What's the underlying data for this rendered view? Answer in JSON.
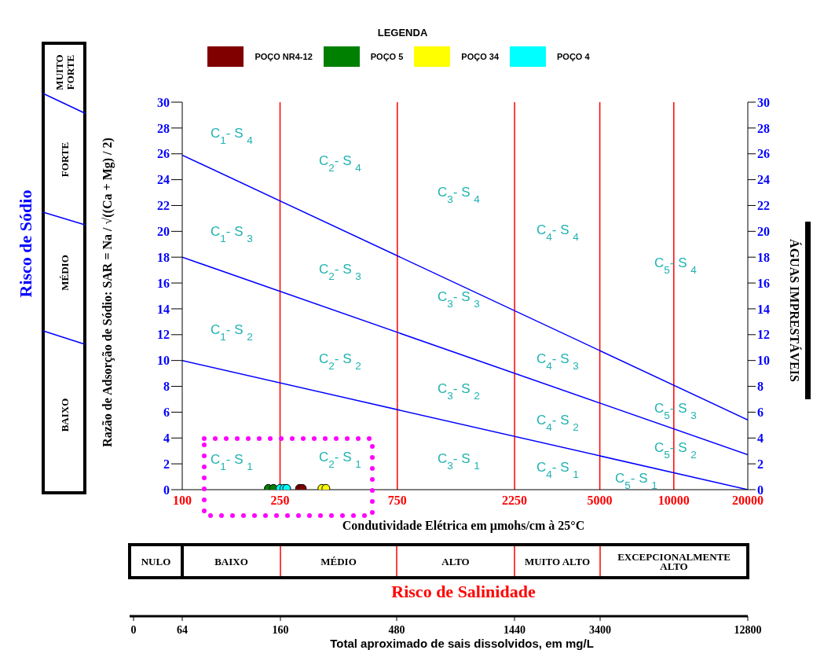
{
  "chart_data": {
    "type": "scatter",
    "xlabel": "Condutividade Elétrica em µmohs/cm à 25°C",
    "ylabel": "Razão de Adsorção de Sódio: SAR = Na / √((Ca + Mg) / 2)",
    "legend_title": "LEGENDA",
    "xlim": [
      100,
      20000
    ],
    "xticks": [
      100,
      250,
      750,
      2250,
      5000,
      10000,
      20000
    ],
    "ylim": [
      0,
      30
    ],
    "yticks": [
      0,
      2,
      4,
      6,
      8,
      10,
      12,
      14,
      16,
      18,
      20,
      22,
      24,
      26,
      28,
      30
    ],
    "y2lim": [
      0,
      30
    ],
    "y2ticks": [
      0,
      2,
      4,
      6,
      8,
      10,
      12,
      14,
      16,
      18,
      20,
      22,
      24,
      26,
      28,
      30
    ],
    "log": "x",
    "grid": false,
    "legend": "top",
    "marker": "circle",
    "series": [
      {
        "name": "POÇO NR4-12",
        "type": "scatter",
        "color": "#800000",
        "x": [
          300,
          308
        ],
        "values": [
          0.1,
          0.1
        ]
      },
      {
        "name": "POÇO 5",
        "type": "scatter",
        "color": "#008000",
        "x": [
          224,
          235
        ],
        "values": [
          0.1,
          0.1
        ]
      },
      {
        "name": "POÇO 34",
        "type": "scatter",
        "color": "#ffff00",
        "x": [
          370,
          384
        ],
        "values": [
          0.1,
          0.1
        ]
      },
      {
        "name": "POÇO 4",
        "type": "scatter",
        "color": "#00ffff",
        "x": [
          250,
          259,
          266
        ],
        "values": [
          0.1,
          0.1,
          0.1
        ]
      },
      {
        "type": "line",
        "marker": "none",
        "color": "#0000ff",
        "x": [
          100,
          20000
        ],
        "values": [
          25.9,
          5.4
        ]
      },
      {
        "type": "line",
        "marker": "none",
        "color": "#0000ff",
        "x": [
          100,
          20000
        ],
        "values": [
          18,
          2.7
        ]
      },
      {
        "type": "line",
        "marker": "none",
        "color": "#0000ff",
        "x": [
          100,
          20000
        ],
        "values": [
          10,
          0
        ]
      }
    ],
    "ref_lines": [
      {
        "axis": "x",
        "value": 250,
        "color": "#ff0000"
      },
      {
        "axis": "x",
        "value": 750,
        "color": "#ff0000"
      },
      {
        "axis": "x",
        "value": 2250,
        "color": "#ff0000"
      },
      {
        "axis": "x",
        "value": 5000,
        "color": "#ff0000"
      },
      {
        "axis": "x",
        "value": 10000,
        "color": "#ff0000"
      }
    ],
    "annotations": [
      "C$_{1}$- S $_{4}$",
      "C$_{2}$- S $_{4}$",
      "C$_{3}$- S $_{4}$",
      "C$_{4}$- S $_{4}$",
      "C$_{5}$- S $_{4}$",
      "C$_{1}$- S $_{3}$",
      "C$_{2}$- S $_{3}$",
      "C$_{3}$- S $_{3}$",
      "C$_{4}$- S $_{3}$",
      "C$_{5}$- S $_{3}$",
      "C$_{1}$- S $_{2}$",
      "C$_{2}$- S $_{2}$",
      "C$_{3}$- S $_{2}$",
      "C$_{4}$- S $_{2}$",
      "C$_{5}$- S $_{2}$",
      "C$_{1}$- S $_{1}$",
      "C$_{2}$- S $_{1}$",
      "C$_{3}$- S $_{1}$",
      "C$_{4}$- S $_{1}$",
      "C$_{5}$- S $_{1}$",
      "Risco de Sódio",
      "MUITO FORTE",
      "FORTE",
      "MÉDIO",
      "BAIXO",
      "ÁGUAS IMPRESTÁVEIS",
      "NULO",
      "BAIXO",
      "MÉDIO",
      "ALTO",
      "MUITO ALTO",
      "EXCEPCIONALMENTE ALTO",
      "Risco de Salinidade",
      "0",
      "64",
      "160",
      "480",
      "1440",
      "3400",
      "12800",
      "Total aproximado de sais dissolvidos, em mg/L"
    ]
  }
}
